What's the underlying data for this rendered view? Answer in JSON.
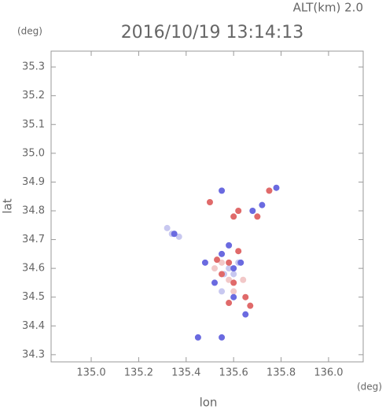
{
  "chart_data": {
    "type": "scatter",
    "title": "2016/10/19 13:14:13",
    "subtitle": "ALT(km) 2.0",
    "y_unit": "(deg)",
    "x_unit": "(deg)",
    "xlabel": "lon",
    "ylabel": "lat",
    "xlim": [
      134.831,
      136.146
    ],
    "ylim": [
      34.275,
      35.355
    ],
    "xticks": [
      {
        "value": 135,
        "label": "135.0"
      },
      135.2,
      135.4,
      135.6,
      135.8,
      {
        "value": 136,
        "label": "136.0"
      }
    ],
    "yticks": [
      34.3,
      34.4,
      34.5,
      34.6,
      34.7,
      34.8,
      34.9,
      {
        "value": 35,
        "label": "35.0"
      },
      35.1,
      35.2,
      35.3
    ],
    "series": [
      {
        "color": "#c8c8f0",
        "x": [
          135.34,
          135.37,
          135.32,
          135.56,
          135.58,
          135.6,
          135.55,
          135.62,
          135.45
        ],
        "y": [
          34.72,
          34.71,
          34.74,
          34.58,
          34.6,
          34.58,
          34.52,
          34.62,
          34.36
        ]
      },
      {
        "color": "#f2c8c8",
        "x": [
          135.55,
          135.6,
          135.58,
          135.52,
          135.64
        ],
        "y": [
          34.62,
          34.52,
          34.56,
          34.6,
          34.56
        ]
      },
      {
        "color": "#6a6ae0",
        "x": [
          135.35,
          135.55,
          135.6,
          135.63,
          135.52,
          135.6,
          135.65,
          135.45,
          135.55,
          135.68,
          135.72,
          135.55,
          135.48,
          135.58,
          135.78
        ],
        "y": [
          34.72,
          34.87,
          34.6,
          34.62,
          34.55,
          34.5,
          34.44,
          34.36,
          34.36,
          34.8,
          34.82,
          34.65,
          34.62,
          34.68,
          34.88
        ]
      },
      {
        "color": "#e06a6a",
        "x": [
          135.5,
          135.6,
          135.62,
          135.58,
          135.55,
          135.6,
          135.58,
          135.67,
          135.65,
          135.53,
          135.62,
          135.75,
          135.7
        ],
        "y": [
          34.83,
          34.78,
          34.8,
          34.62,
          34.58,
          34.55,
          34.48,
          34.47,
          34.5,
          34.63,
          34.66,
          34.87,
          34.78
        ]
      }
    ]
  }
}
